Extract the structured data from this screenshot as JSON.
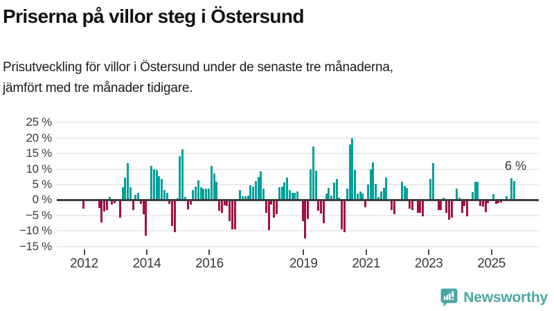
{
  "header": {
    "title": "Priserna på villor steg i Östersund",
    "subtitle_line1": "Prisutveckling för villor i Östersund under de senaste tre månaderna,",
    "subtitle_line2": "jämfört med tre månader tidigare."
  },
  "footer": {
    "brand_name": "Newsworthy"
  },
  "colors": {
    "positive_bar": "#00a09a",
    "negative_bar": "#a21047",
    "zero_axis": "#3c3c3c",
    "gridline": "#ebebeb",
    "brand_teal": "#4ba7a4",
    "text_dark": "#111111",
    "axis_text": "#3a3a3a"
  },
  "chart_data": {
    "type": "bar",
    "unit": "%",
    "start_month": "2012-01",
    "end_month": "2025-10",
    "ylim": [
      -15,
      25
    ],
    "grid": true,
    "yticks": [
      25,
      20,
      15,
      10,
      5,
      0,
      -5,
      -10,
      -15
    ],
    "ytick_labels": [
      "25 %",
      "20 %",
      "15 %",
      "10 %",
      "5 %",
      "0 %",
      "−5 %",
      "−10 %",
      "−15 %"
    ],
    "xtick_years_labeled": [
      2012,
      2014,
      2016,
      2019,
      2021,
      2023,
      2025
    ],
    "annotation": {
      "text": "6 %",
      "month": "2025-10",
      "value": 6
    },
    "values_by_year": {
      "2012": [
        -2.4,
        0,
        0,
        0,
        0,
        0,
        -2.3,
        -6.9,
        -3.3,
        -2.9,
        0.9,
        -1.2
      ],
      "2013": [
        -0.8,
        0,
        -5.3,
        4.0,
        7.3,
        11.8,
        4.0,
        -2.9,
        1.6,
        2.2,
        -0.9,
        -4.3
      ],
      "2014": [
        -11.3,
        0,
        10.9,
        9.9,
        9.7,
        7.6,
        6.8,
        3.2,
        2.4,
        -0.9,
        -8.0,
        -10.0
      ],
      "2015": [
        0.5,
        14.2,
        16.3,
        1.0,
        -2.8,
        -1.2,
        3.2,
        4.3,
        6.4,
        4.0,
        3.6,
        3.6
      ],
      "2016": [
        3.6,
        11.1,
        8.5,
        5.8,
        -3.2,
        -3.9,
        -1.4,
        -1.5,
        -6.5,
        -9.3,
        -9.2,
        0
      ],
      "2017": [
        3.3,
        1.2,
        1.2,
        1.4,
        4.7,
        4.4,
        6.2,
        7.4,
        9.2,
        3.7,
        -3.9,
        -9.4
      ],
      "2018": [
        -1.2,
        -5.5,
        -4.2,
        4.0,
        4.2,
        5.7,
        7.2,
        3.3,
        2.2,
        2.2,
        2.7,
        0
      ],
      "2019": [
        -6.6,
        -12.0,
        -5.9,
        9.8,
        17.3,
        9.4,
        -3.1,
        -4.0,
        -7.1,
        2.1,
        3.9,
        1.3
      ],
      "2020": [
        5.7,
        6.8,
        0.7,
        -9.3,
        -10.1,
        3.7,
        17.9,
        19.9,
        9.6,
        2.1,
        2.8,
        2.1
      ],
      "2021": [
        -2.0,
        5.0,
        9.9,
        12.1,
        5.1,
        1.0,
        2.8,
        3.9,
        7.1,
        0,
        -3.0,
        -4.2
      ],
      "2022": [
        0,
        0,
        5.9,
        4.6,
        3.9,
        -2.4,
        -2.9,
        0,
        -3.8,
        -3.8,
        -4.9,
        0
      ],
      "2023": [
        0,
        6.8,
        11.8,
        0,
        -2.9,
        -2.9,
        0.7,
        -3.8,
        -6.0,
        -5.3,
        0,
        3.7
      ],
      "2024": [
        0.7,
        -3.8,
        -1.5,
        -4.9,
        0,
        2.6,
        5.9,
        5.9,
        -1.6,
        -1.9,
        -3.7,
        -0.8
      ],
      "2025": [
        0,
        1.9,
        -0.9,
        -0.7,
        -0.6,
        0,
        1.2,
        0,
        7.0,
        6.0
      ]
    }
  }
}
